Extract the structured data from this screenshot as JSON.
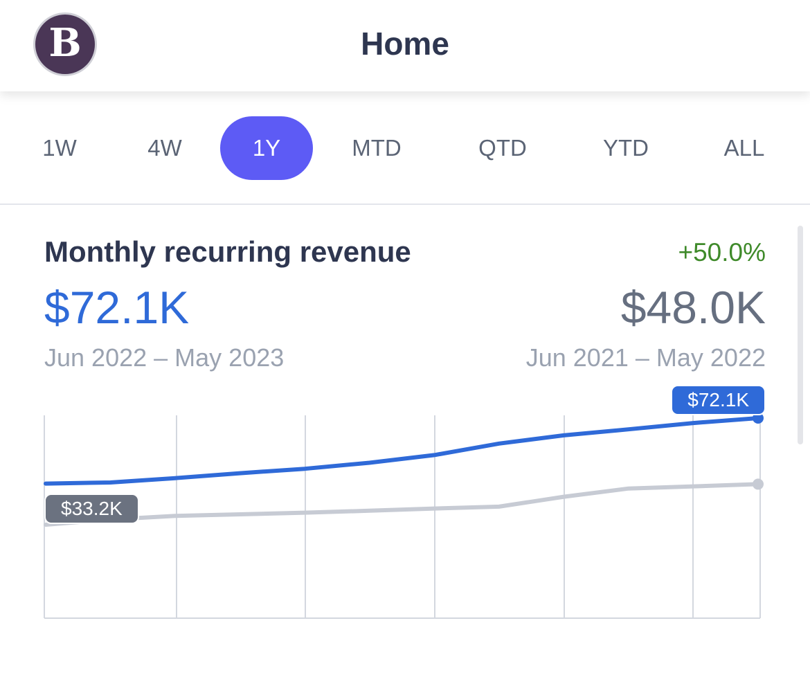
{
  "header": {
    "title": "Home",
    "avatar_letter": "B"
  },
  "tabs": [
    {
      "label": "1W",
      "active": false
    },
    {
      "label": "4W",
      "active": false
    },
    {
      "label": "1Y",
      "active": true
    },
    {
      "label": "MTD",
      "active": false
    },
    {
      "label": "QTD",
      "active": false
    },
    {
      "label": "YTD",
      "active": false
    },
    {
      "label": "ALL",
      "active": false
    }
  ],
  "metric": {
    "title": "Monthly recurring revenue",
    "change": "+50.0%",
    "current_value": "$72.1K",
    "previous_value": "$48.0K",
    "current_range": "Jun 2022 – May 2023",
    "previous_range": "Jun 2021 – May 2022"
  },
  "colors": {
    "accent": "#5d5bf5",
    "current_series": "#2f6ad8",
    "previous_series": "#c7cbd4",
    "positive": "#3f8a2a"
  },
  "chart_data": {
    "type": "line",
    "x_points": 12,
    "series": [
      {
        "id": "current",
        "values": [
          48.2,
          48.6,
          50.2,
          52.0,
          53.6,
          55.8,
          58.6,
          62.8,
          65.8,
          68.0,
          70.3,
          72.1
        ],
        "end_label": "$72.1K",
        "color": "#2f6ad8"
      },
      {
        "id": "previous",
        "values": [
          33.2,
          35.1,
          36.4,
          37.0,
          37.6,
          38.3,
          39.1,
          39.8,
          43.4,
          46.4,
          47.2,
          48.0
        ],
        "start_label": "$33.2K",
        "color": "#c7cbd4"
      }
    ],
    "ylim": [
      0,
      75
    ],
    "grid": "vertical"
  }
}
